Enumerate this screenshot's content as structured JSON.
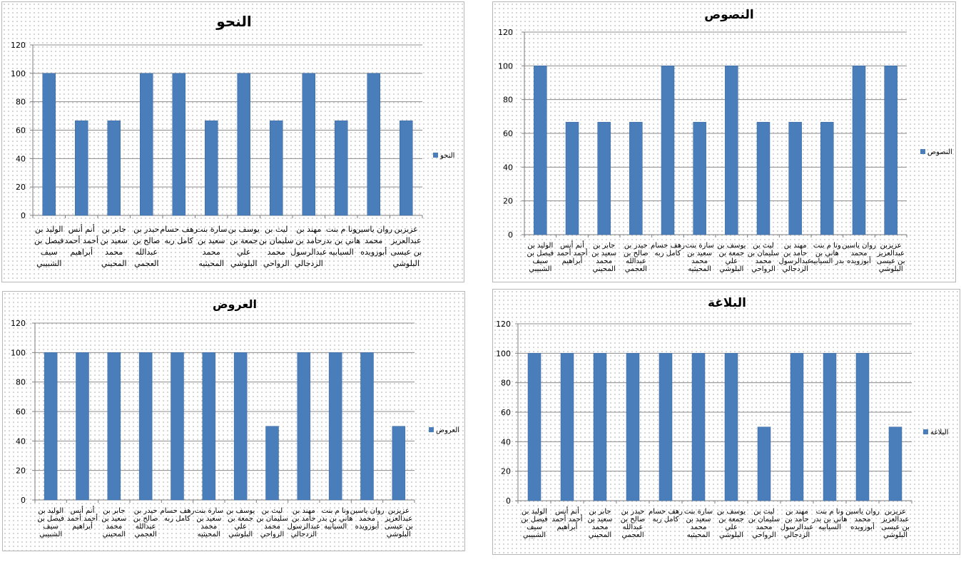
{
  "chart_data": [
    {
      "type": "bar",
      "title": "النحو",
      "series": [
        {
          "name": "النحو",
          "values": [
            100,
            66.67,
            66.67,
            100,
            100,
            66.67,
            100,
            66.67,
            100,
            66.67,
            100,
            66.67
          ]
        }
      ],
      "categories": [
        [
          "الوليد بن",
          "فيصل بن",
          "سيف",
          "الشبيبي"
        ],
        [
          "أنم أنس",
          "أحمد أحمد",
          "أبراهيم"
        ],
        [
          "جابر بن",
          "سعيد بن",
          "محمد",
          "المحيني"
        ],
        [
          "حيدر بن",
          "صالح بن",
          "عبدالله",
          "العجمي"
        ],
        [
          "رهف حسام",
          "كامل ربه"
        ],
        [
          "سارة بنت",
          "سعيد بن",
          "محمد",
          "المحيثيه"
        ],
        [
          "يوسف بن",
          "جمعة بن",
          "علي",
          "البلوشي"
        ],
        [
          "ليث بن",
          "سليمان بن",
          "محمد",
          "الرواحي"
        ],
        [
          "مهند بن",
          "حامد بن",
          "عبدالرسول",
          "الزدجالي"
        ],
        [
          "ونا م بنت",
          "هاني بن بدر",
          "السيابيه"
        ],
        [
          "روان ياسين",
          "محمد",
          "أبوزويده"
        ],
        [
          "عزيزبن",
          "عبدالعزيز",
          "بن عيسى",
          "البلوشي"
        ]
      ],
      "yticks": [
        0,
        20,
        40,
        60,
        80,
        100,
        120
      ],
      "ylim": [
        0,
        120
      ],
      "grid": true,
      "legend": "right"
    },
    {
      "type": "bar",
      "title": "النصوص",
      "series": [
        {
          "name": "النصوص",
          "values": [
            100,
            66.67,
            66.67,
            66.67,
            100,
            66.67,
            100,
            66.67,
            66.67,
            66.67,
            100,
            100
          ]
        }
      ],
      "categories": [
        [
          "الوليد بن",
          "فيصل بن",
          "سيف",
          "الشبيبي"
        ],
        [
          "أنم أنس",
          "أحمد أحمد",
          "أبراهيم"
        ],
        [
          "جابر بن",
          "سعيد بن",
          "محمد",
          "المحيني"
        ],
        [
          "حيدر بن",
          "صالح بن",
          "عبدالله",
          "العجمي"
        ],
        [
          "رهف حسام",
          "كامل ربه"
        ],
        [
          "سارة بنت",
          "سعيد بن",
          "محمد",
          "المحيثيه"
        ],
        [
          "يوسف بن",
          "جمعة بن",
          "علي",
          "البلوشي"
        ],
        [
          "ليث بن",
          "سليمان بن",
          "محمد",
          "الرواحي"
        ],
        [
          "مهند بن",
          "حامد بن",
          "عبدالرسول",
          "الزدجالي"
        ],
        [
          "ونا م بنت",
          "هاني بن",
          "بدر السيابيه"
        ],
        [
          "روان ياسين",
          "محمد",
          "أبوزويده"
        ],
        [
          "عزيزبن",
          "عبدالعزيز",
          "بن عيسى",
          "البلوشي"
        ]
      ],
      "yticks": [
        0,
        20,
        40,
        60,
        80,
        100,
        120
      ],
      "ylim": [
        0,
        120
      ],
      "grid": true,
      "legend": "right"
    },
    {
      "type": "bar",
      "title": "العروض",
      "series": [
        {
          "name": "العروض",
          "values": [
            100,
            100,
            100,
            100,
            100,
            100,
            100,
            50,
            100,
            100,
            100,
            50
          ]
        }
      ],
      "categories": [
        [
          "الوليد بن",
          "فيصل بن",
          "سيف",
          "الشبيبي"
        ],
        [
          "أنم أنس",
          "أحمد أحمد",
          "أبراهيم"
        ],
        [
          "جابر بن",
          "سعيد بن",
          "محمد",
          "المحيني"
        ],
        [
          "حيدر بن",
          "صالح بن",
          "عبدالله",
          "العجمي"
        ],
        [
          "رهف حسام",
          "كامل ربه"
        ],
        [
          "سارة بنت",
          "سعيد بن",
          "محمد",
          "المحيثيه"
        ],
        [
          "يوسف بن",
          "جمعة بن",
          "علي",
          "البلوشي"
        ],
        [
          "ليث بن",
          "سليمان بن",
          "محمد",
          "الرواحي"
        ],
        [
          "مهند بن",
          "حامد بن",
          "عبدالرسول",
          "الزدجالي"
        ],
        [
          "ونا م بنت",
          "هاني بن بدر",
          "السيابيه"
        ],
        [
          "روان ياسين",
          "محمد",
          "أبوزويده"
        ],
        [
          "عزيزبن",
          "عبدالعزيز",
          "بن عيسى",
          "البلوشي"
        ]
      ],
      "yticks": [
        0,
        20,
        40,
        60,
        80,
        100,
        120
      ],
      "ylim": [
        0,
        120
      ],
      "grid": true,
      "legend": "right"
    },
    {
      "type": "bar",
      "title": "البلاغة",
      "series": [
        {
          "name": "البلاغة",
          "values": [
            100,
            100,
            100,
            100,
            100,
            100,
            100,
            50,
            100,
            100,
            100,
            50
          ]
        }
      ],
      "categories": [
        [
          "الوليد بن",
          "فيصل بن",
          "سيف",
          "الشبيبي"
        ],
        [
          "أنم أنس",
          "أحمد أحمد",
          "أبراهيم"
        ],
        [
          "جابر بن",
          "سعيد بن",
          "محمد",
          "المحيني"
        ],
        [
          "حيدر بن",
          "صالح بن",
          "عبدالله",
          "العجمي"
        ],
        [
          "رهف حسام",
          "كامل ربه"
        ],
        [
          "سارة بنت",
          "سعيد بن",
          "محمد",
          "المحيثيه"
        ],
        [
          "يوسف بن",
          "جمعة بن",
          "علي",
          "البلوشي"
        ],
        [
          "ليث بن",
          "سليمان بن",
          "محمد",
          "الرواحي"
        ],
        [
          "مهند بن",
          "حامد بن",
          "عبدالرسول",
          "الزدجالي"
        ],
        [
          "ونا م بنت",
          "هاني بن بدر",
          "السيابيه"
        ],
        [
          "روان ياسين",
          "محمد",
          "أبوزويده"
        ],
        [
          "عزيزبن",
          "عبدالعزيز",
          "بن عيسى",
          "البلوشي"
        ]
      ],
      "yticks": [
        0,
        20,
        40,
        60,
        80,
        100,
        120
      ],
      "ylim": [
        0,
        120
      ],
      "grid": true,
      "legend": "right"
    }
  ],
  "colors": {
    "bar": "#4a7ebb",
    "bar_edge": "#3a66a0",
    "grid": "#8c8c8c",
    "axis": "#7f7f7f"
  }
}
